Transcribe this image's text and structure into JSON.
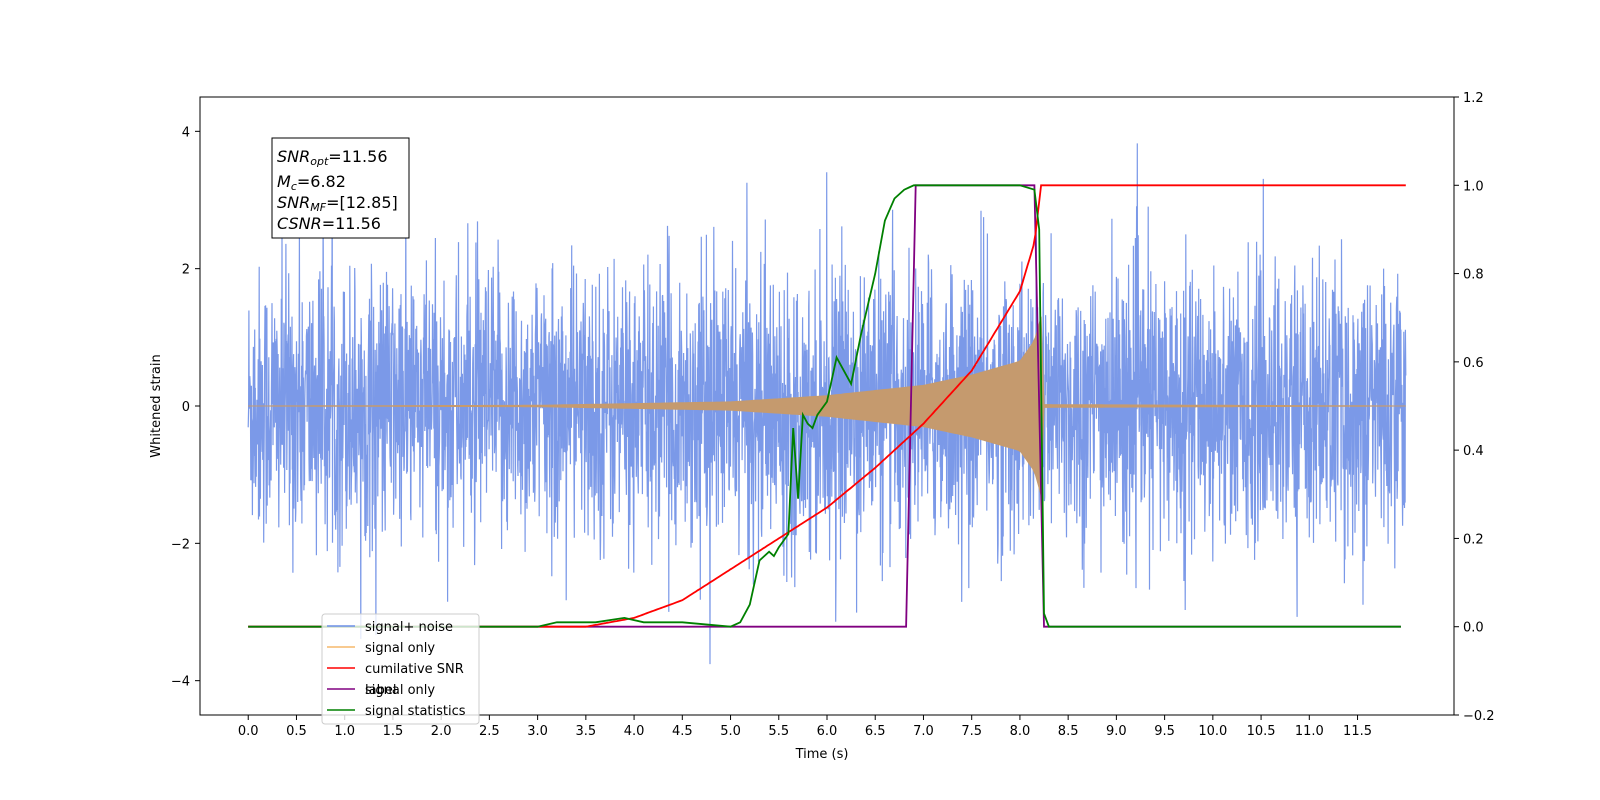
{
  "chart_data": {
    "type": "line",
    "xlabel": "Time (s)",
    "ylabel": "Whitened strain",
    "xlim": [
      -0.5,
      12.5
    ],
    "ylim": [
      -4.5,
      4.5
    ],
    "y2lim": [
      -0.2,
      1.2
    ],
    "grid": false,
    "legend_position": "lower-left",
    "x_ticks": [
      "0.0",
      "0.5",
      "1.0",
      "1.5",
      "2.0",
      "2.5",
      "3.0",
      "3.5",
      "4.0",
      "4.5",
      "5.0",
      "5.5",
      "6.0",
      "6.5",
      "7.0",
      "7.5",
      "8.0",
      "8.5",
      "9.0",
      "9.5",
      "10.0",
      "10.5",
      "11.0",
      "11.5"
    ],
    "y_ticks": [
      "4",
      "2",
      "0",
      "−2",
      "−4"
    ],
    "y2_ticks": [
      "1.2",
      "1.0",
      "0.8",
      "0.6",
      "0.4",
      "0.2",
      "0.0",
      "−0.2"
    ],
    "stats": [
      {
        "name": "SNR",
        "sub": "opt",
        "value": "=11.56"
      },
      {
        "name": "M",
        "sub": "c",
        "value": "=6.82"
      },
      {
        "name": "SNR",
        "sub": "MF",
        "value": "=[12.85]"
      },
      {
        "name": "CSNR",
        "sub": "",
        "value": "=11.56"
      }
    ],
    "legend": [
      {
        "label": "signal+ noise",
        "color": "#6d8ee6"
      },
      {
        "label": "signal only",
        "color": "#f5b96b"
      },
      {
        "label": "cumilative SNR",
        "color": "#ff0000"
      },
      {
        "label": "label",
        "color": "#800080"
      },
      {
        "label": "signal statistics",
        "color": "#008000"
      }
    ],
    "hidden_legend_label": "signal only",
    "series": [
      {
        "name": "signal+ noise",
        "axis": "left",
        "color": "#6d8ee6",
        "noise_std": 1.0,
        "t_start": 0.0,
        "t_end": 12.0
      },
      {
        "name": "signal only",
        "axis": "left",
        "color": "#c59a6e",
        "envelope": {
          "x": [
            0.0,
            3.0,
            5.0,
            6.0,
            7.0,
            7.5,
            8.0,
            8.15,
            8.22,
            8.25,
            12.0
          ],
          "y": [
            0.0,
            0.01,
            0.06,
            0.15,
            0.3,
            0.45,
            0.65,
            0.95,
            1.3,
            0.02,
            0.0
          ]
        }
      },
      {
        "name": "cumilative SNR",
        "axis": "right",
        "color": "#ff0000",
        "x": [
          0.0,
          3.0,
          3.5,
          4.0,
          4.5,
          5.0,
          5.5,
          6.0,
          6.5,
          7.0,
          7.5,
          8.0,
          8.15,
          8.22,
          8.23,
          12.0
        ],
        "y": [
          0.0,
          0.0,
          0.0,
          0.02,
          0.06,
          0.13,
          0.2,
          0.27,
          0.36,
          0.46,
          0.58,
          0.76,
          0.87,
          1.0,
          1.0,
          1.0
        ]
      },
      {
        "name": "label",
        "axis": "right",
        "color": "#800080",
        "x": [
          0.0,
          6.82,
          6.92,
          8.15,
          8.25,
          11.95
        ],
        "y": [
          0.0,
          0.0,
          1.0,
          1.0,
          0.0,
          0.0
        ]
      },
      {
        "name": "signal statistics",
        "axis": "right",
        "color": "#008000",
        "x": [
          0.0,
          3.0,
          3.2,
          3.6,
          3.9,
          4.1,
          4.5,
          5.0,
          5.1,
          5.2,
          5.3,
          5.4,
          5.45,
          5.5,
          5.6,
          5.65,
          5.7,
          5.75,
          5.8,
          5.85,
          5.9,
          6.0,
          6.1,
          6.25,
          6.35,
          6.5,
          6.6,
          6.7,
          6.8,
          6.85,
          6.9,
          7.5,
          8.0,
          8.15,
          8.2,
          8.25,
          8.3,
          11.95
        ],
        "y": [
          0.0,
          0.0,
          0.01,
          0.01,
          0.02,
          0.01,
          0.01,
          0.0,
          0.01,
          0.05,
          0.15,
          0.17,
          0.16,
          0.18,
          0.21,
          0.45,
          0.29,
          0.48,
          0.46,
          0.45,
          0.48,
          0.51,
          0.61,
          0.55,
          0.66,
          0.8,
          0.92,
          0.97,
          0.99,
          0.995,
          1.0,
          1.0,
          1.0,
          0.99,
          0.9,
          0.03,
          0.0,
          0.0
        ]
      }
    ]
  }
}
